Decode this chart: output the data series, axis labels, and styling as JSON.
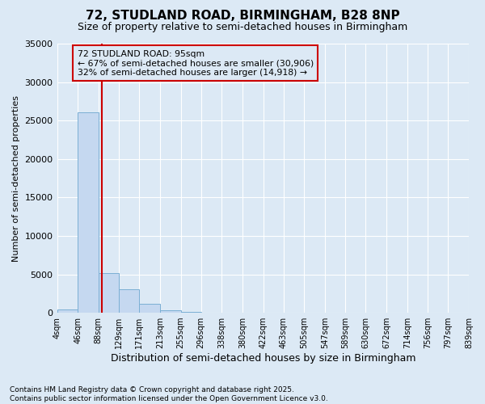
{
  "title": "72, STUDLAND ROAD, BIRMINGHAM, B28 8NP",
  "subtitle": "Size of property relative to semi-detached houses in Birmingham",
  "xlabel": "Distribution of semi-detached houses by size in Birmingham",
  "ylabel": "Number of semi-detached properties",
  "annotation_text": "72 STUDLAND ROAD: 95sqm\n← 67% of semi-detached houses are smaller (30,906)\n32% of semi-detached houses are larger (14,918) →",
  "bin_edges": [
    4,
    46,
    88,
    129,
    171,
    213,
    255,
    296,
    338,
    380,
    422,
    463,
    505,
    547,
    589,
    630,
    672,
    714,
    756,
    797,
    839
  ],
  "bin_labels": [
    "4sqm",
    "46sqm",
    "88sqm",
    "129sqm",
    "171sqm",
    "213sqm",
    "255sqm",
    "296sqm",
    "338sqm",
    "380sqm",
    "422sqm",
    "463sqm",
    "505sqm",
    "547sqm",
    "589sqm",
    "630sqm",
    "672sqm",
    "714sqm",
    "756sqm",
    "797sqm",
    "839sqm"
  ],
  "counts": [
    400,
    26100,
    5200,
    3100,
    1200,
    350,
    100,
    30,
    10,
    5,
    2,
    1,
    1,
    0,
    0,
    0,
    0,
    0,
    0,
    0
  ],
  "bar_color": "#c5d8f0",
  "bar_edge_color": "#7bafd4",
  "vline_color": "#cc0000",
  "vline_x": 95,
  "annotation_box_edgecolor": "#cc0000",
  "background_color": "#dce9f5",
  "grid_color": "#ffffff",
  "ylim": [
    0,
    35000
  ],
  "yticks": [
    0,
    5000,
    10000,
    15000,
    20000,
    25000,
    30000,
    35000
  ],
  "footnote": "Contains HM Land Registry data © Crown copyright and database right 2025.\nContains public sector information licensed under the Open Government Licence v3.0."
}
